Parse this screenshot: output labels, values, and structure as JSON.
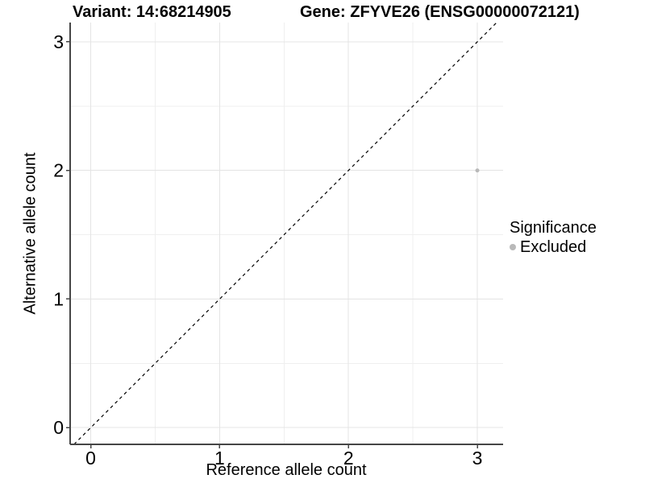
{
  "chart_data": {
    "type": "scatter",
    "title_left": "Variant: 14:68214905",
    "title_right": "Gene: ZFYVE26 (ENSG00000072121)",
    "xlabel": "Reference allele count",
    "ylabel": "Alternative allele count",
    "xlim": [
      -0.16,
      3.2
    ],
    "ylim": [
      -0.13,
      3.15
    ],
    "x_ticks": [
      0,
      1,
      2,
      3
    ],
    "y_ticks": [
      0,
      1,
      2,
      3
    ],
    "x_minor_gridlines": [
      0.5,
      1.5,
      2.5
    ],
    "y_minor_gridlines": [
      0.5,
      1.5,
      2.5
    ],
    "grid": "major and minor, light gray, on white panel",
    "reference_line": "identity y = x, black dashed, spanning panel",
    "series": [
      {
        "name": "Excluded",
        "color": "#b9b9b9",
        "points": [
          {
            "x": 3,
            "y": 2
          }
        ]
      }
    ],
    "legend": {
      "title": "Significance",
      "position": "right",
      "items": [
        {
          "label": "Excluded",
          "color": "#b9b9b9"
        }
      ]
    },
    "colors": {
      "axis": "#464646",
      "grid_major": "#e4e4e4",
      "grid_minor": "#efefef",
      "ref_line": "#000000",
      "tick_text": "#000000"
    }
  }
}
